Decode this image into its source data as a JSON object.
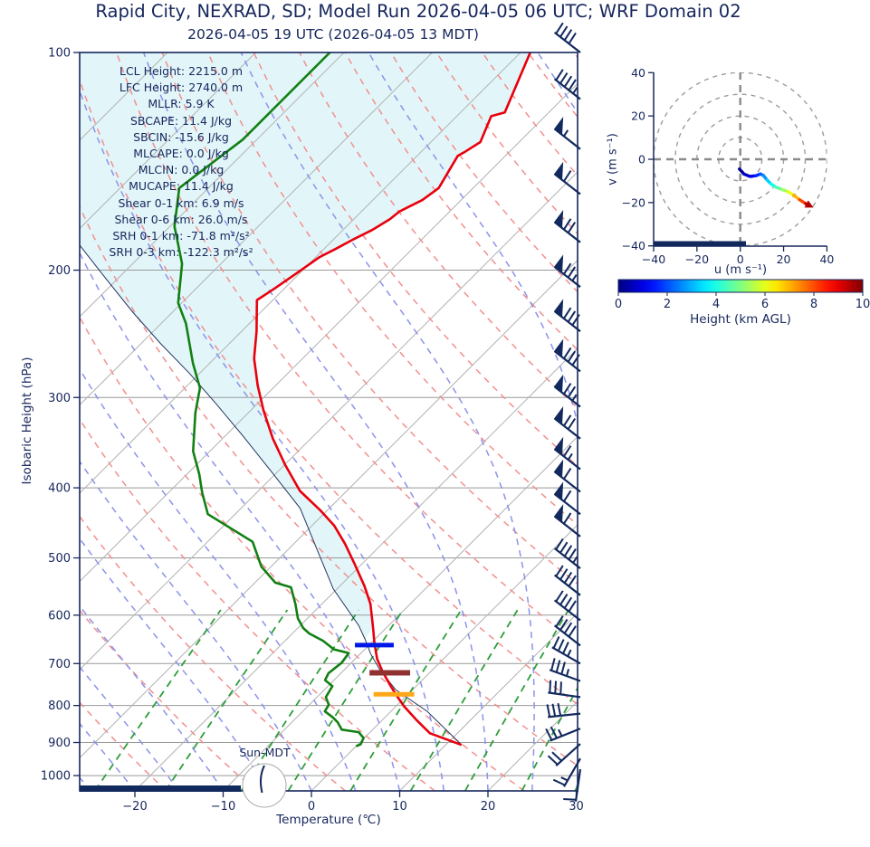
{
  "page": {
    "title": "Rapid City, NEXRAD, SD; Model Run 2026-04-05 06 UTC; WRF Domain 02",
    "subtitle": "2026-04-05 19 UTC  (2026-04-05 13 MDT)"
  },
  "skewt": {
    "xlabel": "Temperature (℃)",
    "ylabel": "Isobaric Height (hPa)",
    "sun_label": "Sun-MDT",
    "x_ticks": [
      -20,
      -10,
      0,
      10,
      20,
      30
    ],
    "p_ticks": [
      100,
      200,
      300,
      400,
      500,
      600,
      700,
      800,
      900,
      1000
    ],
    "stats": [
      {
        "label": "LCL Height",
        "value": "2215.0 m"
      },
      {
        "label": "LFC Height",
        "value": "2740.0 m"
      },
      {
        "label": "MLLR",
        "value": "5.9 K"
      },
      {
        "label": "SBCAPE",
        "value": "11.4 J/kg"
      },
      {
        "label": "SBCIN",
        "value": "-15.6 J/kg"
      },
      {
        "label": "MLCAPE",
        "value": "0.0 J/kg"
      },
      {
        "label": "MLCIN",
        "value": "0.0 J/kg"
      },
      {
        "label": "MUCAPE",
        "value": "11.4 J/kg"
      },
      {
        "label": "Shear 0-1 km",
        "value": "6.9 m/s"
      },
      {
        "label": "Shear 0-6 km",
        "value": "26.0 m/s"
      },
      {
        "label": "SRH 0-1 km",
        "value": "-71.8 m²/s²"
      },
      {
        "label": "SRH 0-3 km",
        "value": "-122.3 m²/s²"
      }
    ]
  },
  "hodograph": {
    "xlabel": "u (m s⁻¹)",
    "ylabel": "v (m s⁻¹)",
    "u_ticks": [
      -40,
      -20,
      0,
      20,
      40
    ],
    "v_ticks": [
      -40,
      -20,
      0,
      20,
      40
    ],
    "ring_radii": [
      10,
      20,
      30,
      40
    ]
  },
  "colorbar": {
    "label": "Height (km AGL)",
    "ticks": [
      0,
      2,
      4,
      6,
      8,
      10
    ],
    "range": [
      0,
      10
    ]
  },
  "colors": {
    "text_navy": "#16265c",
    "temperature": "#e8000d",
    "dewpoint": "#128012",
    "parcel": "#24355f",
    "cin_fill": "#e2f6f9",
    "isotherm": "#b3b3b3",
    "pressure_grid": "#999999",
    "dry_adiabat": "#f28f8f",
    "moist_adiabat": "#8b93ea",
    "mixing_ratio": "#2d9e3a",
    "barb": "#12295e",
    "marker_blue": "#0018e8",
    "marker_maroon": "#8f3131",
    "marker_orange": "#ffa718"
  },
  "chart_data": {
    "type": "skewt-sounding",
    "temperature_xlim_c": [
      -26,
      30
    ],
    "pressure_lim_hpa": [
      100,
      1050
    ],
    "temperature_profile_p_t": [
      [
        100,
        -58.9
      ],
      [
        121,
        -55.0
      ],
      [
        122.5,
        -56.1
      ],
      [
        133,
        -54.4
      ],
      [
        137,
        -55.0
      ],
      [
        139,
        -55.4
      ],
      [
        154,
        -53.9
      ],
      [
        160,
        -54.4
      ],
      [
        164,
        -55.3
      ],
      [
        166,
        -55.7
      ],
      [
        170,
        -55.9
      ],
      [
        176,
        -56.7
      ],
      [
        181,
        -57.7
      ],
      [
        187,
        -58.7
      ],
      [
        192,
        -59.6
      ],
      [
        204,
        -60.5
      ],
      [
        213,
        -61.2
      ],
      [
        220,
        -61.8
      ],
      [
        243,
        -58.3
      ],
      [
        265,
        -55.5
      ],
      [
        289,
        -52.0
      ],
      [
        313,
        -48.5
      ],
      [
        342,
        -44.3
      ],
      [
        372,
        -39.9
      ],
      [
        404,
        -35.3
      ],
      [
        429,
        -30.9
      ],
      [
        451,
        -27.5
      ],
      [
        478,
        -24.2
      ],
      [
        511,
        -20.7
      ],
      [
        547,
        -17.2
      ],
      [
        579,
        -14.5
      ],
      [
        623,
        -11.6
      ],
      [
        656,
        -9.6
      ],
      [
        690,
        -7.5
      ],
      [
        719,
        -5.4
      ],
      [
        752,
        -2.9
      ],
      [
        777,
        -1.0
      ],
      [
        802,
        0.9
      ],
      [
        837,
        3.8
      ],
      [
        874,
        6.9
      ],
      [
        907,
        11.8
      ]
    ],
    "dewpoint_profile_p_t": [
      [
        100,
        -81.6
      ],
      [
        132,
        -81.6
      ],
      [
        154,
        -83.3
      ],
      [
        174,
        -79.5
      ],
      [
        184,
        -77.1
      ],
      [
        196,
        -74.4
      ],
      [
        222,
        -70.4
      ],
      [
        237,
        -67.2
      ],
      [
        269,
        -61.9
      ],
      [
        291,
        -58.3
      ],
      [
        315,
        -56.0
      ],
      [
        356,
        -51.9
      ],
      [
        383,
        -48.6
      ],
      [
        406,
        -46.2
      ],
      [
        435,
        -43.1
      ],
      [
        475,
        -34.9
      ],
      [
        514,
        -31.1
      ],
      [
        541,
        -27.7
      ],
      [
        549,
        -25.4
      ],
      [
        579,
        -23.0
      ],
      [
        606,
        -21.1
      ],
      [
        625,
        -19.4
      ],
      [
        636,
        -18.1
      ],
      [
        651,
        -15.7
      ],
      [
        669,
        -13.5
      ],
      [
        677,
        -11.4
      ],
      [
        698,
        -11.1
      ],
      [
        722,
        -11.4
      ],
      [
        738,
        -11.0
      ],
      [
        752,
        -9.5
      ],
      [
        779,
        -9.0
      ],
      [
        798,
        -7.8
      ],
      [
        815,
        -7.5
      ],
      [
        831,
        -5.9
      ],
      [
        844,
        -4.8
      ],
      [
        864,
        -3.5
      ],
      [
        871,
        -1.3
      ],
      [
        887,
        -0.1
      ],
      [
        905,
        0.3
      ],
      [
        911,
        0.0
      ]
    ],
    "parcel_trace_p_t": [
      [
        907,
        11.8
      ],
      [
        815,
        4.1
      ],
      [
        761,
        -1.9
      ],
      [
        715,
        -5.9
      ],
      [
        679,
        -8.8
      ],
      [
        648,
        -11.1
      ],
      [
        620,
        -13.4
      ],
      [
        552,
        -20.4
      ],
      [
        491,
        -26.3
      ],
      [
        427,
        -33.3
      ],
      [
        380,
        -40.7
      ],
      [
        339,
        -48.0
      ],
      [
        306,
        -54.7
      ],
      [
        278,
        -61.1
      ],
      [
        253,
        -67.7
      ],
      [
        229,
        -74.4
      ],
      [
        205,
        -81.5
      ],
      [
        183,
        -88.7
      ]
    ],
    "level_markers": [
      {
        "p": 660,
        "t": -9.4,
        "t_halfwidth": 2.2,
        "color": "#0018e8",
        "thick": 5
      },
      {
        "p": 721,
        "t": -4.5,
        "t_halfwidth": 2.3,
        "color": "#8f3131",
        "thick": 6
      },
      {
        "p": 772,
        "t": -1.6,
        "t_halfwidth": 2.3,
        "color": "#ffa718",
        "thick": 5
      }
    ],
    "wind_barbs": [
      {
        "p": 100,
        "dir": 142,
        "pennants": 0,
        "full": 4,
        "half": 0
      },
      {
        "p": 116,
        "dir": 142,
        "pennants": 0,
        "full": 4,
        "half": 1
      },
      {
        "p": 136,
        "dir": 142,
        "pennants": 1,
        "full": 0,
        "half": 1
      },
      {
        "p": 157,
        "dir": 142,
        "pennants": 1,
        "full": 1,
        "half": 0
      },
      {
        "p": 183,
        "dir": 142,
        "pennants": 1,
        "full": 2,
        "half": 0
      },
      {
        "p": 211,
        "dir": 142,
        "pennants": 1,
        "full": 2,
        "half": 1
      },
      {
        "p": 243,
        "dir": 142,
        "pennants": 1,
        "full": 3,
        "half": 0
      },
      {
        "p": 276,
        "dir": 142,
        "pennants": 1,
        "full": 3,
        "half": 0
      },
      {
        "p": 309,
        "dir": 142,
        "pennants": 1,
        "full": 2,
        "half": 1
      },
      {
        "p": 342,
        "dir": 142,
        "pennants": 1,
        "full": 2,
        "half": 0
      },
      {
        "p": 377,
        "dir": 142,
        "pennants": 1,
        "full": 1,
        "half": 1
      },
      {
        "p": 405,
        "dir": 142,
        "pennants": 1,
        "full": 1,
        "half": 0
      },
      {
        "p": 435,
        "dir": 142,
        "pennants": 1,
        "full": 1,
        "half": 0
      },
      {
        "p": 467,
        "dir": 142,
        "pennants": 1,
        "full": 1,
        "half": 0
      },
      {
        "p": 517,
        "dir": 142,
        "pennants": 0,
        "full": 4,
        "half": 1
      },
      {
        "p": 563,
        "dir": 142,
        "pennants": 0,
        "full": 4,
        "half": 0
      },
      {
        "p": 610,
        "dir": 142,
        "pennants": 0,
        "full": 4,
        "half": 0
      },
      {
        "p": 661,
        "dir": 142,
        "pennants": 0,
        "full": 4,
        "half": 0
      },
      {
        "p": 700,
        "dir": 150,
        "pennants": 0,
        "full": 3,
        "half": 1
      },
      {
        "p": 740,
        "dir": 160,
        "pennants": 0,
        "full": 3,
        "half": 1
      },
      {
        "p": 779,
        "dir": 172,
        "pennants": 0,
        "full": 3,
        "half": 0
      },
      {
        "p": 821,
        "dir": 186,
        "pennants": 0,
        "full": 3,
        "half": 0
      },
      {
        "p": 861,
        "dir": 202,
        "pennants": 0,
        "full": 2,
        "half": 1
      },
      {
        "p": 904,
        "dir": 222,
        "pennants": 0,
        "full": 2,
        "half": 0
      },
      {
        "p": 947,
        "dir": 240,
        "pennants": 0,
        "full": 1,
        "half": 1
      },
      {
        "p": 980,
        "dir": 262,
        "pennants": 0,
        "full": 1,
        "half": 0
      }
    ],
    "hodograph_trace_u_v_heightkm": [
      [
        -0.4,
        -4.5,
        0
      ],
      [
        1.7,
        -6.8,
        0.4
      ],
      [
        4.4,
        -7.9,
        0.9
      ],
      [
        7.2,
        -7.6,
        1.4
      ],
      [
        9.3,
        -6.8,
        1.9
      ],
      [
        10.7,
        -7.5,
        2.4
      ],
      [
        12.4,
        -9.6,
        3.0
      ],
      [
        14.2,
        -11.4,
        3.6
      ],
      [
        16.3,
        -12.8,
        4.2
      ],
      [
        19.1,
        -13.9,
        4.9
      ],
      [
        21.9,
        -14.9,
        5.6
      ],
      [
        24.7,
        -16.6,
        6.5
      ],
      [
        27.4,
        -18.7,
        7.5
      ],
      [
        30.2,
        -20.5,
        8.7
      ],
      [
        31.6,
        -21.2,
        10
      ]
    ],
    "background": {
      "isotherms_c": {
        "min": -110,
        "max": 30,
        "step": 10
      },
      "dry_adiabats_theta_c": {
        "min": -40,
        "max": 150,
        "step": 10
      },
      "moist_adiabats_t0_c": {
        "min": -45,
        "max": 45,
        "step": 5
      },
      "mixing_ratio_g_kg": [
        0.5,
        1,
        2,
        3,
        5,
        8,
        12,
        18,
        26
      ]
    }
  }
}
